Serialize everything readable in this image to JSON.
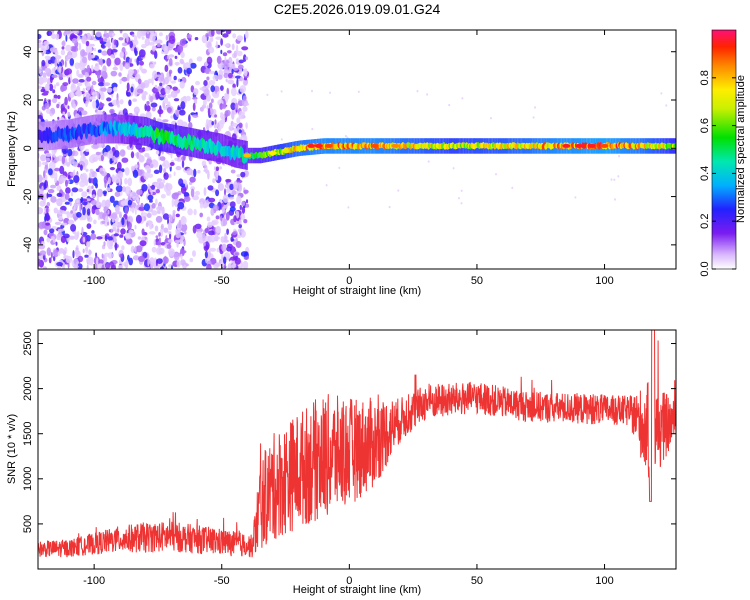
{
  "title": "C2E5.2026.019.09.01.G24",
  "chart_data": [
    {
      "type": "heatmap",
      "xlabel": "Height of straight line (km)",
      "ylabel": "Frequency (Hz)",
      "xlim": [
        -122,
        128
      ],
      "ylim": [
        -50,
        49
      ],
      "x_ticks": [
        -100,
        -50,
        0,
        50,
        100
      ],
      "y_ticks": [
        -40,
        -20,
        0,
        20,
        40
      ],
      "tick_labels_x": [
        "-100",
        "-50",
        "0",
        "50",
        "100"
      ],
      "tick_labels_y": [
        "-40",
        "-20",
        "0",
        "20",
        "40"
      ],
      "colorbar": {
        "label": "Normalized spectral amplitude",
        "range": [
          0,
          1
        ],
        "ticks": [
          0.0,
          0.2,
          0.4,
          0.6,
          0.8
        ],
        "tick_labels": [
          "0.0",
          "0.2",
          "0.4",
          "0.6",
          "0.8"
        ]
      },
      "ridge": {
        "x": [
          -120,
          -110,
          -100,
          -90,
          -80,
          -75,
          -70,
          -60,
          -50,
          -45,
          -40,
          -35,
          -30,
          -20,
          -10,
          0,
          10,
          20,
          40,
          60,
          80,
          100,
          115,
          128
        ],
        "frequency": [
          5,
          6,
          8,
          8,
          7,
          5,
          4,
          2,
          0,
          -2,
          -3,
          -3,
          -2,
          0,
          1,
          1,
          1,
          1,
          1,
          1,
          1,
          1,
          1,
          1
        ],
        "amplitude": [
          0.25,
          0.3,
          0.3,
          0.4,
          0.5,
          0.6,
          0.55,
          0.5,
          0.45,
          0.45,
          0.5,
          0.6,
          0.7,
          0.85,
          0.9,
          0.9,
          0.9,
          0.85,
          0.75,
          0.8,
          0.9,
          0.95,
          0.85,
          0.7
        ]
      },
      "noise_region_x": [
        -122,
        -40
      ]
    },
    {
      "type": "line",
      "xlabel": "Height of straight line (km)",
      "ylabel": "SNR (10 * v/v)",
      "xlim": [
        -122,
        128
      ],
      "ylim": [
        0,
        2650
      ],
      "x_ticks": [
        -100,
        -50,
        0,
        50,
        100
      ],
      "y_ticks": [
        500,
        1000,
        1500,
        2000,
        2500
      ],
      "tick_labels_x": [
        "-100",
        "-50",
        "0",
        "50",
        "100"
      ],
      "tick_labels_y": [
        "500",
        "1000",
        "1500",
        "2000",
        "2500"
      ],
      "series": [
        {
          "color": "#ee3333",
          "envelope_x": [
            -122,
            -110,
            -100,
            -90,
            -80,
            -70,
            -60,
            -50,
            -40,
            -38,
            -35,
            -30,
            -20,
            -10,
            0,
            10,
            20,
            30,
            50,
            70,
            90,
            110,
            118,
            128
          ],
          "envelope_mean": [
            220,
            230,
            280,
            330,
            350,
            360,
            330,
            300,
            260,
            250,
            700,
            900,
            1100,
            1250,
            1300,
            1400,
            1650,
            1850,
            1900,
            1800,
            1780,
            1750,
            1500,
            1650
          ],
          "envelope_amp": [
            90,
            100,
            120,
            150,
            170,
            170,
            160,
            150,
            130,
            130,
            500,
            600,
            650,
            700,
            600,
            500,
            250,
            200,
            180,
            170,
            170,
            170,
            600,
            200
          ],
          "max": 2650,
          "min": 0
        }
      ]
    }
  ]
}
